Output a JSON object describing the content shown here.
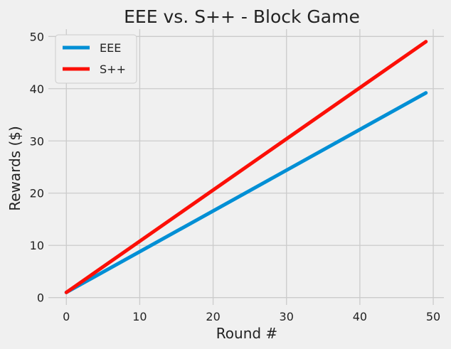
{
  "chart_data": {
    "type": "line",
    "title": "EEE vs. S++ - Block Game",
    "xlabel": "Round #",
    "ylabel": "Rewards ($)",
    "xlim": [
      -2.45,
      51.45
    ],
    "ylim": [
      -1.4,
      51.4
    ],
    "xticks": [
      0,
      10,
      20,
      30,
      40,
      50
    ],
    "yticks": [
      0,
      10,
      20,
      30,
      40,
      50
    ],
    "grid": true,
    "legend_position": "top-left",
    "x": [
      0,
      49
    ],
    "series": [
      {
        "name": "EEE",
        "color": "#008fd5",
        "values": [
          1.0,
          39.2
        ]
      },
      {
        "name": "S++",
        "color": "#fc0f07",
        "values": [
          1.0,
          49.0
        ]
      }
    ]
  }
}
